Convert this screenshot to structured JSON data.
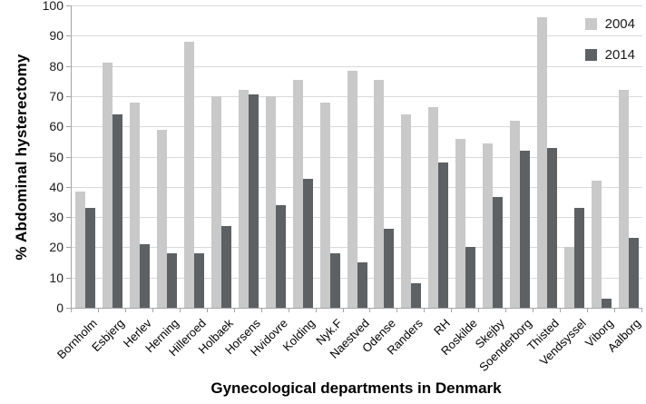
{
  "chart_data": {
    "type": "bar",
    "title": "",
    "xlabel": "Gynecological departments in Denmark",
    "ylabel": "% Abdominal hysterectomy",
    "ylim": [
      0,
      100
    ],
    "ytick_step": 10,
    "yticks": [
      0,
      10,
      20,
      30,
      40,
      50,
      60,
      70,
      80,
      90,
      100
    ],
    "grid": true,
    "legend_position": "top-right",
    "categories": [
      "Bornholm",
      "Esbjerg",
      "Herlev",
      "Herning",
      "Hilleroed",
      "Holbaek",
      "Horsens",
      "Hvidovre",
      "Kolding",
      "Nyk.F",
      "Naestved",
      "Odense",
      "Randers",
      "RH",
      "Roskilde",
      "Skejby",
      "Soenderborg",
      "Thisted",
      "Vendsyssel",
      "Viborg",
      "Aalborg"
    ],
    "series": [
      {
        "name": "2004",
        "color": "#c8c9c8",
        "values": [
          38.5,
          81,
          68,
          59,
          88,
          70,
          72,
          70,
          75.5,
          68,
          78.5,
          75.5,
          64,
          66.5,
          56,
          54.5,
          62,
          96,
          20,
          42,
          72
        ]
      },
      {
        "name": "2014",
        "color": "#5d6164",
        "values": [
          33,
          64,
          21,
          18,
          18,
          27,
          70.5,
          34,
          42.5,
          18,
          15,
          26,
          8,
          48,
          20,
          36.5,
          52,
          53,
          33,
          3,
          23
        ]
      }
    ],
    "colors": {
      "gridline": "#d9d9d9",
      "axis": "#a6a6a6",
      "bar_2004": "#c8c9c8",
      "bar_2014": "#5d6164"
    }
  }
}
